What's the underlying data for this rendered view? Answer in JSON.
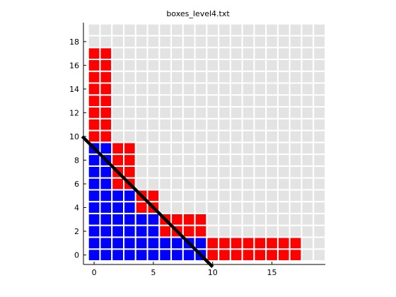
{
  "chart_data": {
    "type": "heatmap",
    "title": "boxes_level4.txt",
    "xlabel": "",
    "ylabel": "",
    "xlim": [
      -0.9,
      19.5
    ],
    "ylim": [
      -0.8,
      19.6
    ],
    "xticks": [
      0,
      5,
      10,
      15
    ],
    "yticks": [
      0,
      2,
      4,
      6,
      8,
      10,
      12,
      14,
      16,
      18
    ],
    "grid": {
      "x": [
        0,
        19
      ],
      "y": [
        0,
        19
      ]
    },
    "colors": {
      "empty": "#e3e3e3",
      "inside": "#0000ff",
      "outside": "#ff0000",
      "line": "#000000",
      "cell_border": "#ffffff"
    },
    "column_heights": [
      18,
      18,
      10,
      10,
      6,
      6,
      4,
      4,
      4,
      4,
      2,
      2,
      2,
      2,
      2,
      2,
      2,
      2,
      0,
      0
    ],
    "blue_column_heights": [
      10,
      10,
      6,
      6,
      4,
      4,
      2,
      2,
      2,
      2,
      0,
      0,
      0,
      0,
      0,
      0,
      0,
      0,
      0,
      0
    ],
    "line": {
      "x": [
        -1,
        10
      ],
      "y": [
        10,
        -1
      ]
    }
  }
}
